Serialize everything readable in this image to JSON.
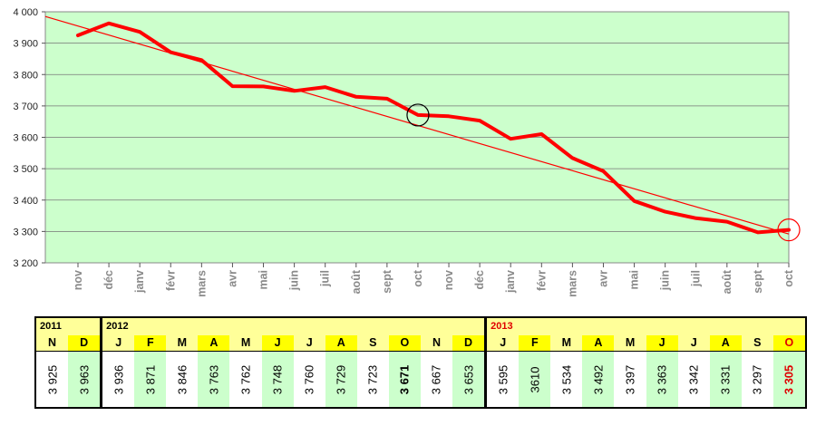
{
  "chart_data": {
    "type": "line",
    "x_labels": [
      "nov",
      "déc",
      "janv",
      "févr",
      "mars",
      "avr",
      "mai",
      "juin",
      "juil",
      "août",
      "sept",
      "oct",
      "nov",
      "déc",
      "janv",
      "févr",
      "mars",
      "avr",
      "mai",
      "juin",
      "juil",
      "août",
      "sept",
      "oct"
    ],
    "series": [
      {
        "values": [
          3925,
          3963,
          3936,
          3871,
          3846,
          3763,
          3762,
          3748,
          3760,
          3729,
          3723,
          3671,
          3667,
          3653,
          3595,
          3610,
          3534,
          3492,
          3397,
          3363,
          3342,
          3331,
          3297,
          3305
        ],
        "color": "#ff0000"
      }
    ],
    "trend": {
      "start": 3985,
      "end": 3292,
      "color": "#ff0000"
    },
    "yticks": [
      "3 200",
      "3 300",
      "3 400",
      "3 500",
      "3 600",
      "3 700",
      "3 800",
      "3 900",
      "4 000"
    ],
    "ylim": [
      3200,
      4000
    ],
    "plot_background": "#ccffcc",
    "grid": true,
    "highlight_circles": [
      {
        "index": 11,
        "value": 3671,
        "color": "#000000"
      },
      {
        "index": 23,
        "value": 3305,
        "color": "#ff0000"
      }
    ]
  },
  "table": {
    "groups": [
      {
        "year": "2011",
        "year_color": "#000000",
        "months": [
          "N",
          "D"
        ],
        "values": [
          "3 925",
          "3 963"
        ]
      },
      {
        "year": "2012",
        "year_color": "#000000",
        "months": [
          "J",
          "F",
          "M",
          "A",
          "M",
          "J",
          "J",
          "A",
          "S",
          "O",
          "N",
          "D"
        ],
        "values": [
          "3 936",
          "3 871",
          "3 846",
          "3 763",
          "3 762",
          "3 748",
          "3 760",
          "3 729",
          "3 723",
          "3 671",
          "3 667",
          "3 653"
        ]
      },
      {
        "year": "2013",
        "year_color": "#e00000",
        "months": [
          "J",
          "F",
          "M",
          "A",
          "M",
          "J",
          "J",
          "A",
          "S",
          "O"
        ],
        "values": [
          "3 595",
          "3610",
          "3 534",
          "3 492",
          "3 397",
          "3 363",
          "3 342",
          "3 331",
          "3 297",
          "3 305"
        ]
      }
    ],
    "colors": {
      "header_bg": "#ffff99",
      "month_highlight": "#ffff00",
      "value_highlight": "#ccffcc",
      "accent_red": "#e00000"
    }
  }
}
